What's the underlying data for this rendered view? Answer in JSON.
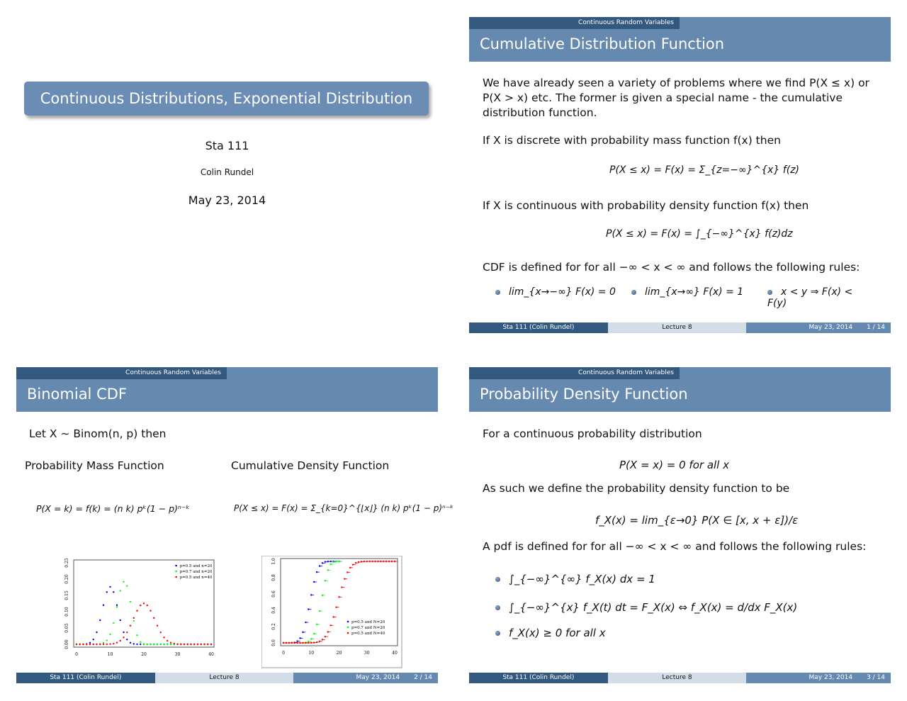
{
  "title_slide": {
    "title": "Continuous Distributions, Exponential Distribution",
    "course": "Sta 111",
    "author": "Colin Rundel",
    "date": "May 23, 2014"
  },
  "section": "Continuous Random Variables",
  "footer": {
    "left": "Sta 111  (Colin Rundel)",
    "center": "Lecture 8",
    "date": "May 23, 2014"
  },
  "slide1": {
    "title": "Cumulative Distribution Function",
    "page": "1 / 14",
    "p1": "We have already seen a variety of problems where we find P(X ≤ x) or P(X > x) etc.  The former is given a special name - the cumulative distribution function.",
    "p2": "If X is discrete with probability mass function f(x) then",
    "eq1": "P(X ≤ x) = F(x) = Σ_{z=−∞}^{x} f(z)",
    "p3": "If X is continuous with probability density function f(x) then",
    "eq2": "P(X ≤ x) = F(x) = ∫_{−∞}^{x} f(z)dz",
    "p4": "CDF is defined for for all −∞ < x < ∞ and follows the following rules:",
    "rules": [
      "lim_{x→−∞} F(x) = 0",
      "lim_{x→∞} F(x) = 1",
      "x < y ⇒ F(x) < F(y)"
    ]
  },
  "slide2": {
    "title": "Binomial CDF",
    "page": "2 / 14",
    "intro": "Let X ∼ Binom(n, p) then",
    "pmf_label": "Probability Mass Function",
    "cdf_label": "Cumulative Density Function",
    "pmf_eq": "P(X = k) = f(k) = (n k) pᵏ(1 − p)ⁿ⁻ᵏ",
    "cdf_eq": "P(X ≤ x) = F(x) = Σ_{k=0}^{⌊x⌋} (n k) pᵏ(1 − p)ⁿ⁻ᵏ"
  },
  "slide3": {
    "title": "Probability Density Function",
    "page": "3 / 14",
    "p1": "For a continuous probability distribution",
    "eq1": "P(X = x) = 0 for all x",
    "p2": "As such we define the probability density function to be",
    "eq2": "f_X(x) = lim_{ε→0} P(X ∈ [x, x + ε])/ε",
    "p3": "A pdf is defined for for all −∞ < x < ∞ and follows the following rules:",
    "rules": [
      "∫_{−∞}^{∞} f_X(x) dx = 1",
      "∫_{−∞}^{x} f_X(t) dt = F_X(x)  ⇔  f_X(x) = d/dx F_X(x)",
      "f_X(x) ≥ 0 for all x"
    ]
  },
  "chart_data": [
    {
      "type": "scatter",
      "xlim": [
        0,
        40
      ],
      "ylim": [
        0,
        0.25
      ],
      "xticks": [
        "0",
        "10",
        "20",
        "30",
        "40"
      ],
      "yticks": [
        "0.00",
        "0.05",
        "0.10",
        "0.15",
        "0.20",
        "0.25"
      ],
      "legend": "top-right",
      "series": [
        {
          "name": "p=0.5 and n=20",
          "p": 0.5,
          "n": 20,
          "color": "#0000ff"
        },
        {
          "name": "p=0.7 and n=20",
          "p": 0.7,
          "n": 20,
          "color": "#00ff00"
        },
        {
          "name": "p=0.5 and n=40",
          "p": 0.5,
          "n": 40,
          "color": "#ff0000"
        }
      ]
    },
    {
      "type": "step",
      "xlim": [
        0,
        40
      ],
      "ylim": [
        0,
        1
      ],
      "xticks": [
        "0",
        "10",
        "20",
        "30",
        "40"
      ],
      "yticks": [
        "0.0",
        "0.2",
        "0.4",
        "0.6",
        "0.8",
        "1.0"
      ],
      "legend": "bottom-right",
      "series": [
        {
          "name": "p=0.5 and N=20",
          "p": 0.5,
          "n": 20,
          "color": "#0000ff"
        },
        {
          "name": "p=0.7 and N=20",
          "p": 0.7,
          "n": 20,
          "color": "#00ff00"
        },
        {
          "name": "p=0.5 and N=40",
          "p": 0.5,
          "n": 40,
          "color": "#ff0000"
        }
      ]
    }
  ]
}
